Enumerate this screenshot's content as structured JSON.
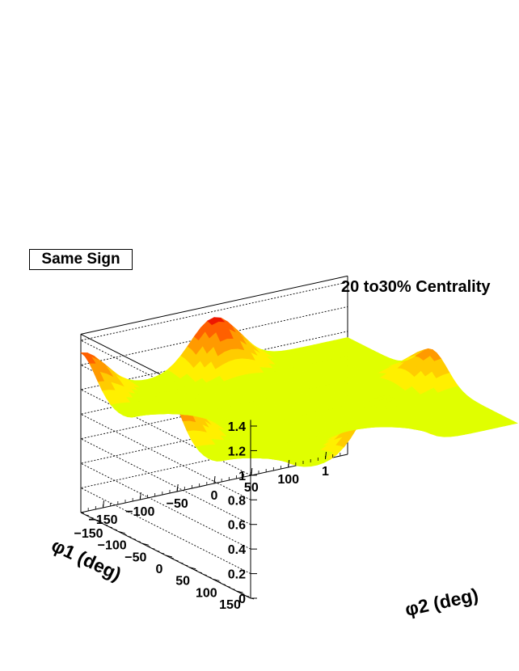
{
  "chart_data": {
    "type": "surface",
    "title": "20 to30% Centrality",
    "legend": "Same Sign",
    "xlabel": "φ2 (deg)",
    "ylabel": "φ1 (deg)",
    "zlabel": "",
    "xlim": [
      -180,
      180
    ],
    "ylim": [
      -180,
      180
    ],
    "zlim": [
      0,
      1.45
    ],
    "x_ticks": [
      "−150",
      "−100",
      "−50",
      "0",
      "50",
      "100",
      "1"
    ],
    "y_ticks": [
      "150",
      "100",
      "50",
      "0",
      "−50",
      "−100",
      "−150"
    ],
    "z_ticks": [
      "0",
      "0.2",
      "0.4",
      "0.6",
      "0.8",
      "1",
      "1.2",
      "1.4"
    ],
    "z_tick_values": [
      0,
      0.2,
      0.4,
      0.6,
      0.8,
      1.0,
      1.2,
      1.4
    ],
    "base_level": 0.95,
    "peaks": [
      {
        "phi2": -180,
        "phi1": 180,
        "height": 1.25
      },
      {
        "phi2": -180,
        "phi1": 0,
        "height": 1.35
      },
      {
        "phi2": 0,
        "phi1": 180,
        "height": 1.42
      },
      {
        "phi2": -180,
        "phi1": -180,
        "height": 1.3
      },
      {
        "phi2": 0,
        "phi1": -180,
        "height": 1.35
      },
      {
        "phi2": 180,
        "phi1": 0,
        "height": 1.2
      }
    ],
    "color_levels": [
      {
        "from": 0.0,
        "color": "#e0ff00"
      },
      {
        "from": 1.0,
        "color": "#fff000"
      },
      {
        "from": 1.08,
        "color": "#ffcc00"
      },
      {
        "from": 1.16,
        "color": "#ff9a00"
      },
      {
        "from": 1.24,
        "color": "#ff6000"
      },
      {
        "from": 1.32,
        "color": "#ee1800"
      }
    ],
    "grid": true
  }
}
